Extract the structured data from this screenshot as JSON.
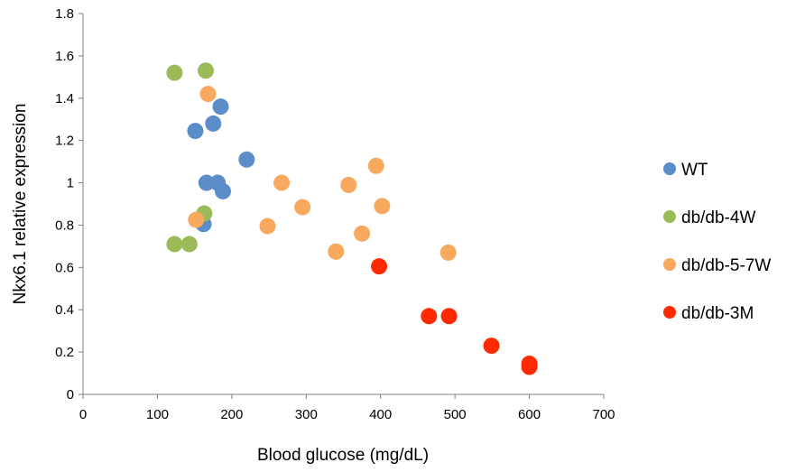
{
  "chart_data": {
    "type": "scatter",
    "title": "",
    "xlabel": "Blood glucose (mg/dL)",
    "ylabel": "Nkx6.1 relative expression",
    "xlim": [
      0,
      700
    ],
    "ylim": [
      0,
      1.8
    ],
    "xticks": [
      "0",
      "100",
      "200",
      "300",
      "400",
      "500",
      "600",
      "700"
    ],
    "yticks": [
      "0",
      "0.2",
      "0.4",
      "0.6",
      "0.8",
      "1",
      "1.2",
      "1.4",
      "1.6",
      "1.8"
    ],
    "grid": false,
    "legend_position": "right",
    "series": [
      {
        "name": "WT",
        "color": "#5b8dc9",
        "points": [
          {
            "x": 151,
            "y": 1.245
          },
          {
            "x": 175,
            "y": 1.28
          },
          {
            "x": 185,
            "y": 1.36
          },
          {
            "x": 220,
            "y": 1.11
          },
          {
            "x": 166,
            "y": 1.0
          },
          {
            "x": 181,
            "y": 1.0
          },
          {
            "x": 188,
            "y": 0.96
          },
          {
            "x": 162,
            "y": 0.805
          }
        ]
      },
      {
        "name": "db/db-4W",
        "color": "#9bbb59",
        "points": [
          {
            "x": 123,
            "y": 1.52
          },
          {
            "x": 165,
            "y": 1.53
          },
          {
            "x": 163,
            "y": 0.855
          },
          {
            "x": 123,
            "y": 0.71
          },
          {
            "x": 143,
            "y": 0.71
          }
        ]
      },
      {
        "name": "db/db-5-7W",
        "color": "#f8a95e",
        "points": [
          {
            "x": 168,
            "y": 1.42
          },
          {
            "x": 152,
            "y": 0.825
          },
          {
            "x": 248,
            "y": 0.795
          },
          {
            "x": 267,
            "y": 1.0
          },
          {
            "x": 295,
            "y": 0.885
          },
          {
            "x": 357,
            "y": 0.99
          },
          {
            "x": 394,
            "y": 1.08
          },
          {
            "x": 402,
            "y": 0.89
          },
          {
            "x": 375,
            "y": 0.76
          },
          {
            "x": 340,
            "y": 0.675
          },
          {
            "x": 491,
            "y": 0.67
          }
        ]
      },
      {
        "name": "db/db-3M",
        "color": "#ff2a00",
        "points": [
          {
            "x": 398,
            "y": 0.605
          },
          {
            "x": 465,
            "y": 0.37
          },
          {
            "x": 492,
            "y": 0.37
          },
          {
            "x": 549,
            "y": 0.23
          },
          {
            "x": 600,
            "y": 0.145
          },
          {
            "x": 600,
            "y": 0.13
          }
        ]
      }
    ]
  }
}
